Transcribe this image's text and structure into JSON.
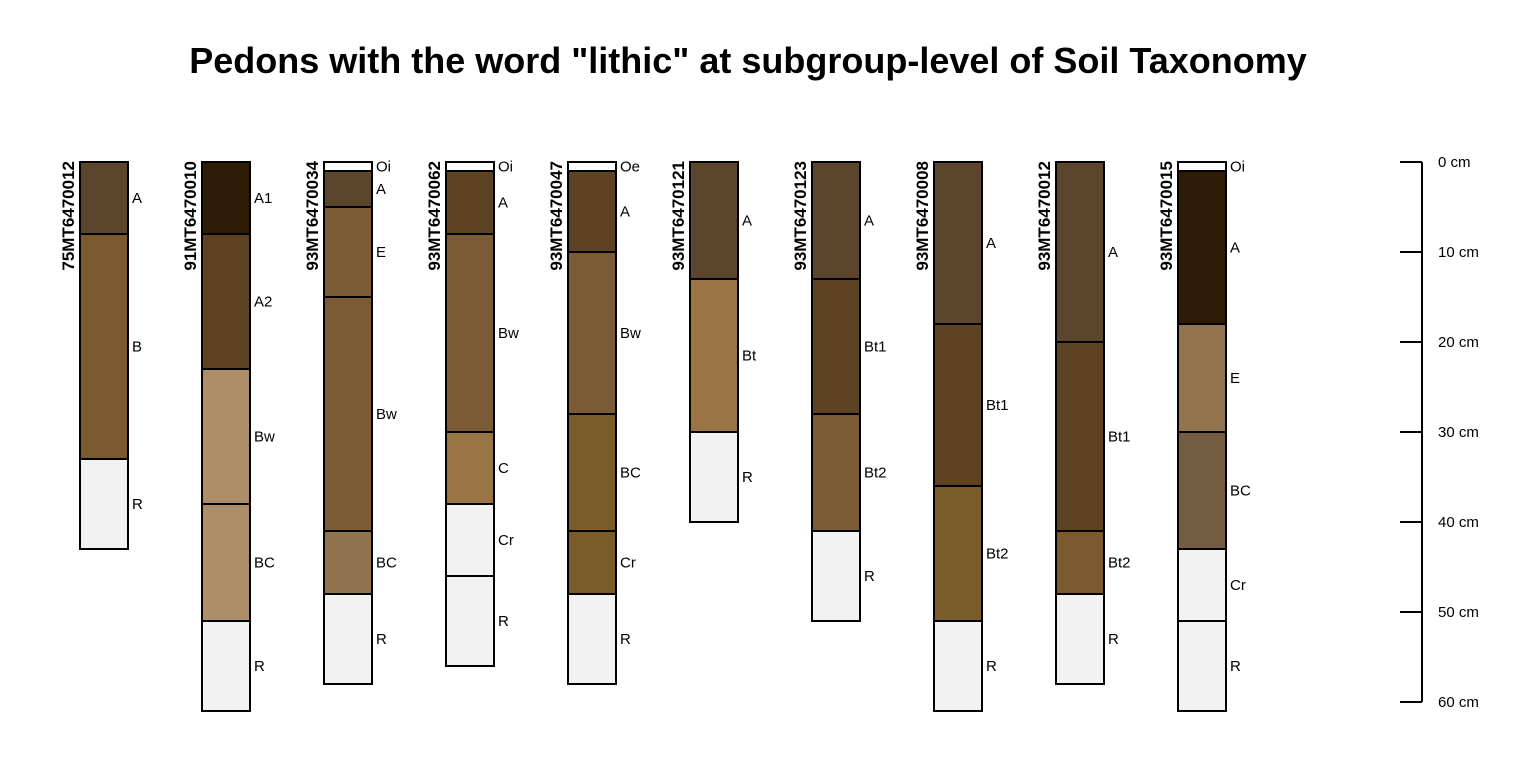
{
  "chart_data": {
    "type": "soil-profile",
    "title": "Pedons with the word \"lithic\" at subgroup-level of Soil Taxonomy",
    "depth_unit": "cm",
    "depth_range": [
      0,
      60
    ],
    "depth_ticks": [
      {
        "value": 0,
        "label": "0 cm"
      },
      {
        "value": 10,
        "label": "10 cm"
      },
      {
        "value": 20,
        "label": "20 cm"
      },
      {
        "value": 30,
        "label": "30 cm"
      },
      {
        "value": 40,
        "label": "40 cm"
      },
      {
        "value": 50,
        "label": "50 cm"
      },
      {
        "value": 60,
        "label": "60 cm"
      }
    ],
    "profiles": [
      {
        "id": "75MT6470012",
        "horizons": [
          {
            "name": "A",
            "top": 0,
            "bottom": 8,
            "color": "#5C452D"
          },
          {
            "name": "B",
            "top": 8,
            "bottom": 33,
            "color": "#7B592F"
          },
          {
            "name": "R",
            "top": 33,
            "bottom": 43,
            "color": "#F2F2F2"
          }
        ]
      },
      {
        "id": "91MT6470010",
        "horizons": [
          {
            "name": "A1",
            "top": 0,
            "bottom": 8,
            "color": "#2E1B05"
          },
          {
            "name": "A2",
            "top": 8,
            "bottom": 23,
            "color": "#5D4323"
          },
          {
            "name": "Bw",
            "top": 23,
            "bottom": 38,
            "color": "#AD8E69"
          },
          {
            "name": "BC",
            "top": 38,
            "bottom": 51,
            "color": "#AD8E69"
          },
          {
            "name": "R",
            "top": 51,
            "bottom": 61,
            "color": "#F2F2F2"
          }
        ]
      },
      {
        "id": "93MT6470034",
        "horizons": [
          {
            "name": "Oi",
            "top": 0,
            "bottom": 1,
            "color": "#FFFFFF"
          },
          {
            "name": "A",
            "top": 1,
            "bottom": 5,
            "color": "#5C452D"
          },
          {
            "name": "E",
            "top": 5,
            "bottom": 15,
            "color": "#7B5A36"
          },
          {
            "name": "Bw",
            "top": 15,
            "bottom": 41,
            "color": "#7B5A36"
          },
          {
            "name": "BC",
            "top": 41,
            "bottom": 48,
            "color": "#90734F"
          },
          {
            "name": "R",
            "top": 48,
            "bottom": 58,
            "color": "#F2F2F2"
          }
        ]
      },
      {
        "id": "93MT6470062",
        "horizons": [
          {
            "name": "Oi",
            "top": 0,
            "bottom": 1,
            "color": "#FFFFFF"
          },
          {
            "name": "A",
            "top": 1,
            "bottom": 8,
            "color": "#5D4323"
          },
          {
            "name": "Bw",
            "top": 8,
            "bottom": 30,
            "color": "#7B5A36"
          },
          {
            "name": "C",
            "top": 30,
            "bottom": 38,
            "color": "#997444"
          },
          {
            "name": "Cr",
            "top": 38,
            "bottom": 46,
            "color": "#F2F2F2"
          },
          {
            "name": "R",
            "top": 46,
            "bottom": 56,
            "color": "#F2F2F2"
          }
        ]
      },
      {
        "id": "93MT6470047",
        "horizons": [
          {
            "name": "Oe",
            "top": 0,
            "bottom": 1,
            "color": "#FFFFFF"
          },
          {
            "name": "A",
            "top": 1,
            "bottom": 10,
            "color": "#5D4323"
          },
          {
            "name": "Bw",
            "top": 10,
            "bottom": 28,
            "color": "#7B5A36"
          },
          {
            "name": "BC",
            "top": 28,
            "bottom": 41,
            "color": "#7A5B2A"
          },
          {
            "name": "Cr",
            "top": 41,
            "bottom": 48,
            "color": "#7A5B2A"
          },
          {
            "name": "R",
            "top": 48,
            "bottom": 58,
            "color": "#F2F2F2"
          }
        ]
      },
      {
        "id": "93MT6470121",
        "horizons": [
          {
            "name": "A",
            "top": 0,
            "bottom": 13,
            "color": "#5C452D"
          },
          {
            "name": "Bt",
            "top": 13,
            "bottom": 30,
            "color": "#997444"
          },
          {
            "name": "R",
            "top": 30,
            "bottom": 40,
            "color": "#F2F2F2"
          }
        ]
      },
      {
        "id": "93MT6470123",
        "horizons": [
          {
            "name": "A",
            "top": 0,
            "bottom": 13,
            "color": "#5C452D"
          },
          {
            "name": "Bt1",
            "top": 13,
            "bottom": 28,
            "color": "#5D4323"
          },
          {
            "name": "Bt2",
            "top": 28,
            "bottom": 41,
            "color": "#7B5A36"
          },
          {
            "name": "R",
            "top": 41,
            "bottom": 51,
            "color": "#F2F2F2"
          }
        ]
      },
      {
        "id": "93MT6470008",
        "horizons": [
          {
            "name": "A",
            "top": 0,
            "bottom": 18,
            "color": "#5C452D"
          },
          {
            "name": "Bt1",
            "top": 18,
            "bottom": 36,
            "color": "#5D4323"
          },
          {
            "name": "Bt2",
            "top": 36,
            "bottom": 51,
            "color": "#7A5B2A"
          },
          {
            "name": "R",
            "top": 51,
            "bottom": 61,
            "color": "#F2F2F2"
          }
        ]
      },
      {
        "id": "93MT6470012",
        "horizons": [
          {
            "name": "A",
            "top": 0,
            "bottom": 20,
            "color": "#5C452D"
          },
          {
            "name": "Bt1",
            "top": 20,
            "bottom": 41,
            "color": "#5D4323"
          },
          {
            "name": "Bt2",
            "top": 41,
            "bottom": 48,
            "color": "#7B592F"
          },
          {
            "name": "R",
            "top": 48,
            "bottom": 58,
            "color": "#F2F2F2"
          }
        ]
      },
      {
        "id": "93MT6470015",
        "horizons": [
          {
            "name": "Oi",
            "top": 0,
            "bottom": 1,
            "color": "#FFFFFF"
          },
          {
            "name": "A",
            "top": 1,
            "bottom": 18,
            "color": "#2E1B05"
          },
          {
            "name": "E",
            "top": 18,
            "bottom": 30,
            "color": "#92744F"
          },
          {
            "name": "BC",
            "top": 30,
            "bottom": 43,
            "color": "#735C42"
          },
          {
            "name": "Cr",
            "top": 43,
            "bottom": 51,
            "color": "#F2F2F2"
          },
          {
            "name": "R",
            "top": 51,
            "bottom": 61,
            "color": "#F2F2F2"
          }
        ]
      }
    ]
  }
}
